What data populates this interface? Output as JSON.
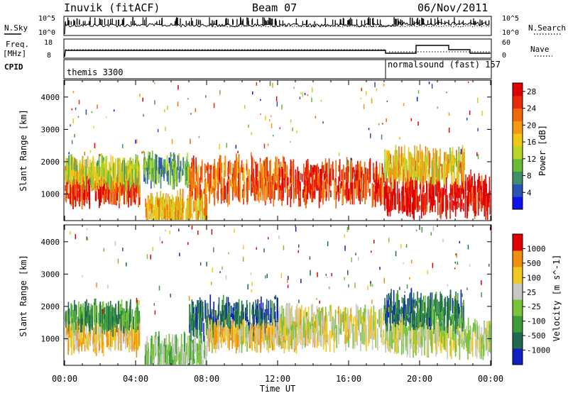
{
  "header": {
    "station": "Inuvik (fitACF)",
    "beam": "Beam 07",
    "date": "06/Nov/2011"
  },
  "top_panels": {
    "nsky_label": "N.Sky",
    "nsky_ticks": [
      "10^5",
      "10^0"
    ],
    "nsearch_label": "N.Search",
    "nsearch_ticks": [
      "10^5",
      "10^0"
    ],
    "freq_label_1": "Freq.",
    "freq_label_2": "[MHz]",
    "freq_ticks": [
      "18",
      "8"
    ],
    "nave_label": "Nave",
    "nave_ticks": [
      "60",
      "0"
    ],
    "cpid_label": "CPID",
    "cpid_modes": [
      {
        "name": "themis 3300",
        "start_hour": 0
      },
      {
        "name": "normalsound (fast) 157",
        "start_hour": 18.0
      }
    ]
  },
  "chart_data": [
    {
      "type": "heatmap",
      "panel": "power",
      "title": "",
      "xlabel": "",
      "ylabel": "Slant Range [km]",
      "x_ticks": [
        "00:00",
        "04:00",
        "08:00",
        "12:00",
        "16:00",
        "20:00",
        "00:00"
      ],
      "y_ticks": [
        "1000",
        "2000",
        "3000",
        "4000"
      ],
      "xlim_hours": [
        0,
        24
      ],
      "ylim_km": [
        200,
        4500
      ],
      "colorbar": {
        "label": "Power [dB]",
        "ticks": [
          "4",
          "8",
          "12",
          "16",
          "20",
          "24",
          "28"
        ],
        "range": [
          0,
          30
        ],
        "colors": [
          "#1010f0",
          "#2a55b5",
          "#3f8f6a",
          "#6aba3a",
          "#b8d62a",
          "#f0c818",
          "#f59a10",
          "#f06a0a",
          "#e82a0a",
          "#e00000"
        ]
      },
      "echo_bands": [
        {
          "h0": 0.0,
          "h1": 4.2,
          "r0": 900,
          "r1": 1450,
          "level": 0.85
        },
        {
          "h0": 0.0,
          "h1": 4.2,
          "r0": 1450,
          "r1": 1900,
          "level": 0.45
        },
        {
          "h0": 4.4,
          "h1": 7.0,
          "r0": 1500,
          "r1": 2000,
          "level": 0.3
        },
        {
          "h0": 4.5,
          "h1": 8.0,
          "r0": 200,
          "r1": 800,
          "level": 0.6
        },
        {
          "h0": 7.0,
          "h1": 12.0,
          "r0": 950,
          "r1": 1900,
          "level": 0.75
        },
        {
          "h0": 12.0,
          "h1": 18.0,
          "r0": 900,
          "r1": 1800,
          "level": 0.85
        },
        {
          "h0": 18.0,
          "h1": 24.0,
          "r0": 500,
          "r1": 1400,
          "level": 0.95
        },
        {
          "h0": 18.0,
          "h1": 22.5,
          "r0": 1500,
          "r1": 2200,
          "level": 0.55
        }
      ]
    },
    {
      "type": "heatmap",
      "panel": "velocity",
      "title": "",
      "xlabel": "Time UT",
      "ylabel": "Slant Range [km]",
      "x_ticks": [
        "00:00",
        "04:00",
        "08:00",
        "12:00",
        "16:00",
        "20:00",
        "00:00"
      ],
      "y_ticks": [
        "1000",
        "2000",
        "3000",
        "4000"
      ],
      "xlim_hours": [
        0,
        24
      ],
      "ylim_km": [
        200,
        4500
      ],
      "colorbar": {
        "label": "Velocity [m s^-1]",
        "ticks": [
          "1000",
          "500",
          "100",
          "25",
          "-25",
          "-100",
          "-500",
          "-1000"
        ],
        "colors": [
          "#1020c0",
          "#1f6a50",
          "#3c9c3c",
          "#78c43a",
          "#c8c8c0",
          "#f0c820",
          "#f09010",
          "#e00000"
        ]
      },
      "echo_bands": [
        {
          "h0": 0.0,
          "h1": 4.2,
          "r0": 800,
          "r1": 1450,
          "level": 0.7
        },
        {
          "h0": 0.0,
          "h1": 4.2,
          "r0": 1450,
          "r1": 1900,
          "level": 0.3
        },
        {
          "h0": 4.5,
          "h1": 8.0,
          "r0": 200,
          "r1": 900,
          "level": 0.45
        },
        {
          "h0": 7.0,
          "h1": 12.0,
          "r0": 1200,
          "r1": 2000,
          "level": 0.2
        },
        {
          "h0": 8.0,
          "h1": 13.0,
          "r0": 900,
          "r1": 1300,
          "level": 0.65
        },
        {
          "h0": 12.0,
          "h1": 18.0,
          "r0": 900,
          "r1": 1800,
          "level": 0.6
        },
        {
          "h0": 18.0,
          "h1": 24.0,
          "r0": 700,
          "r1": 1400,
          "level": 0.55
        },
        {
          "h0": 18.0,
          "h1": 22.5,
          "r0": 1500,
          "r1": 2200,
          "level": 0.25
        }
      ]
    }
  ]
}
